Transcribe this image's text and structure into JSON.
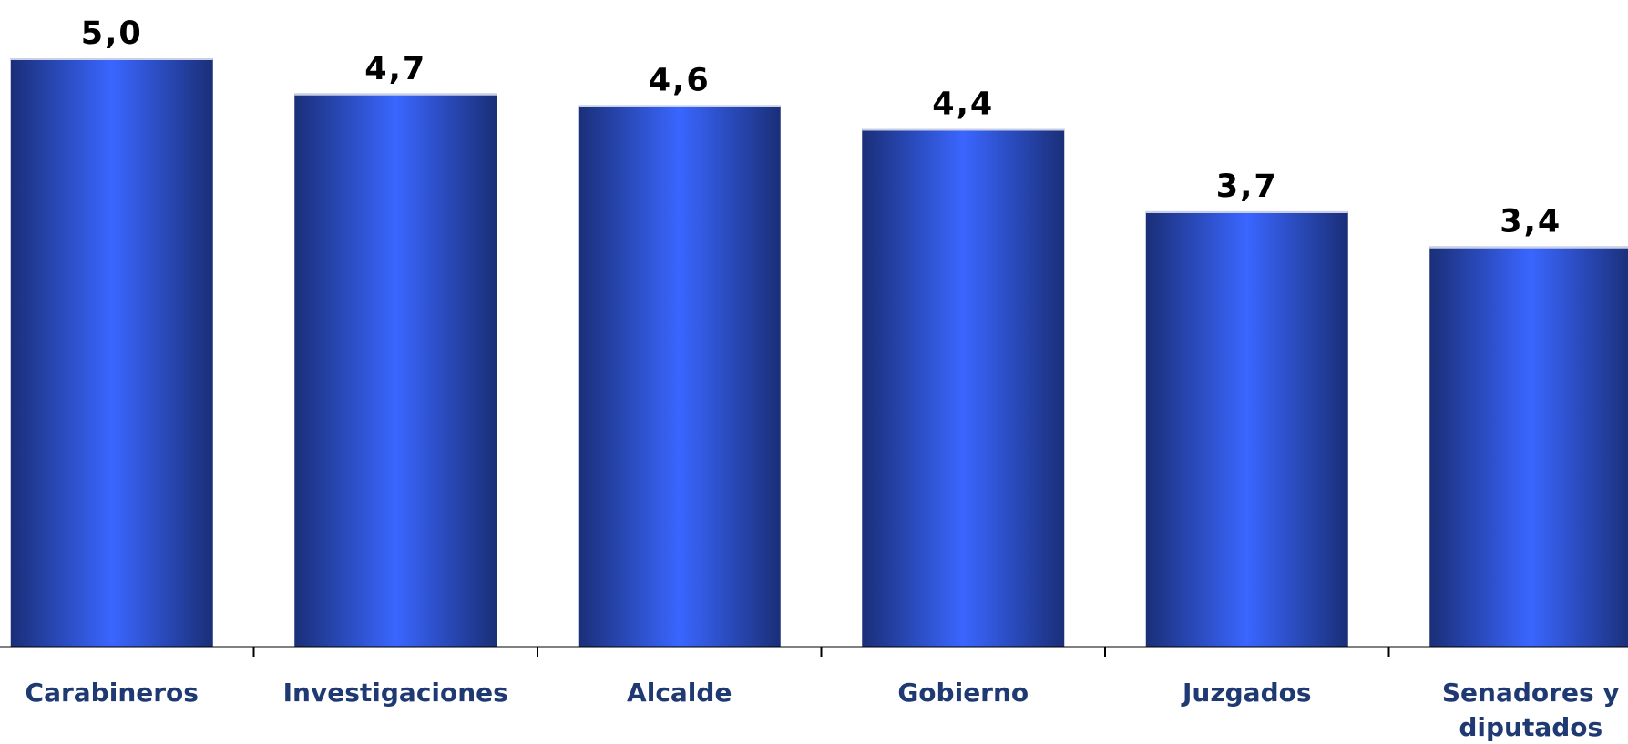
{
  "chart_data": {
    "type": "bar",
    "categories": [
      [
        "Carabineros"
      ],
      [
        "Investigaciones"
      ],
      [
        "Alcalde"
      ],
      [
        "Gobierno"
      ],
      [
        "Juzgados"
      ],
      [
        "Senadores y",
        "diputados"
      ]
    ],
    "values": [
      5.0,
      4.7,
      4.6,
      4.4,
      3.7,
      3.4
    ],
    "data_labels": [
      "5,0",
      "4,7",
      "4,6",
      "4,4",
      "3,7",
      "3,4"
    ],
    "title": "",
    "xlabel": "",
    "ylabel": "",
    "y_axis_visible": false,
    "grid": false,
    "legend": "none",
    "colors": {
      "bar_edge": "#1a2f78",
      "bar_center": "#3a66ff",
      "bar_top_border": "#c8cfe6",
      "axis_line": "#000000",
      "category_text": "#1f3a73",
      "value_text": "#000000"
    }
  }
}
